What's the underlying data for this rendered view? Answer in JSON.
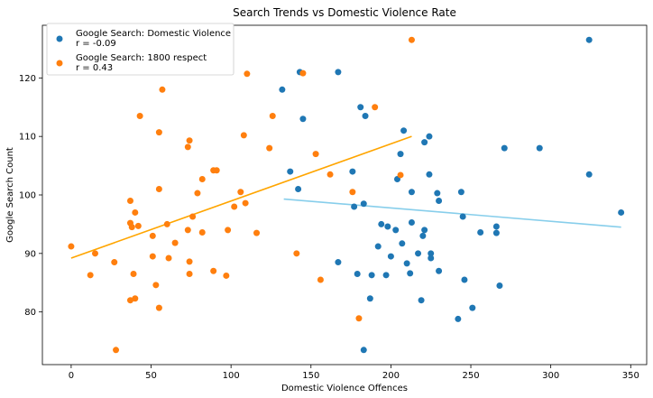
{
  "chart_data": {
    "type": "scatter",
    "title": "Search Trends vs Domestic Violence Rate",
    "xlabel": "Domestic Violence Offences",
    "ylabel": "Google Search Count",
    "xlim": [
      -18,
      360
    ],
    "ylim": [
      71,
      129
    ],
    "xticks": [
      0,
      50,
      100,
      150,
      200,
      250,
      300,
      350
    ],
    "yticks": [
      80,
      90,
      100,
      110,
      120
    ],
    "grid": false,
    "legend_position": "top-left",
    "series": [
      {
        "name": "Google Search: Domestic Violence",
        "legend_label_line1": "Google Search: Domestic Violence",
        "legend_label_line2": "r = -0.09",
        "color": "#1f77b4",
        "trend_color": "#87ceeb",
        "trend": [
          [
            133,
            99.3
          ],
          [
            344,
            94.5
          ]
        ],
        "points": [
          [
            143,
            121
          ],
          [
            167,
            121
          ],
          [
            132,
            118
          ],
          [
            145,
            113
          ],
          [
            181,
            115
          ],
          [
            184,
            113.5
          ],
          [
            208,
            111
          ],
          [
            224,
            110
          ],
          [
            221,
            109
          ],
          [
            137,
            104
          ],
          [
            176,
            104
          ],
          [
            293,
            108
          ],
          [
            271,
            108
          ],
          [
            324,
            126.5
          ],
          [
            324,
            103.5
          ],
          [
            142,
            101
          ],
          [
            177,
            98
          ],
          [
            183,
            98.5
          ],
          [
            204,
            102.7
          ],
          [
            206,
            107
          ],
          [
            213,
            100.5
          ],
          [
            224,
            103.5
          ],
          [
            229,
            100.3
          ],
          [
            230,
            99
          ],
          [
            244,
            100.5
          ],
          [
            245,
            96.3
          ],
          [
            344,
            97
          ],
          [
            194,
            95
          ],
          [
            198,
            94.6
          ],
          [
            203,
            94
          ],
          [
            213,
            95.3
          ],
          [
            221,
            94
          ],
          [
            266,
            94.6
          ],
          [
            266,
            93.5
          ],
          [
            256,
            93.6
          ],
          [
            220,
            93
          ],
          [
            207,
            91.7
          ],
          [
            192,
            91.2
          ],
          [
            200,
            89.5
          ],
          [
            217,
            90
          ],
          [
            225,
            90
          ],
          [
            225,
            89.2
          ],
          [
            210,
            88.3
          ],
          [
            167,
            88.5
          ],
          [
            179,
            86.5
          ],
          [
            188,
            86.3
          ],
          [
            197,
            86.3
          ],
          [
            212,
            86.6
          ],
          [
            230,
            87
          ],
          [
            246,
            85.5
          ],
          [
            268,
            84.5
          ],
          [
            187,
            82.3
          ],
          [
            219,
            82
          ],
          [
            183,
            73.5
          ],
          [
            242,
            78.8
          ],
          [
            251,
            80.7
          ]
        ]
      },
      {
        "name": "Google Search: 1800 respect",
        "legend_label_line1": "Google Search: 1800 respect",
        "legend_label_line2": "r = 0.43",
        "color": "#ff7f0e",
        "trend_color": "#ffa500",
        "trend": [
          [
            0,
            89.2
          ],
          [
            213,
            110
          ]
        ],
        "points": [
          [
            0,
            91.2
          ],
          [
            12,
            86.3
          ],
          [
            15,
            90
          ],
          [
            27,
            88.5
          ],
          [
            28,
            73.5
          ],
          [
            37,
            95.2
          ],
          [
            37,
            82
          ],
          [
            38,
            94.5
          ],
          [
            39,
            86.5
          ],
          [
            40,
            82.3
          ],
          [
            40,
            97
          ],
          [
            42,
            94.7
          ],
          [
            43,
            113.5
          ],
          [
            51,
            93
          ],
          [
            51,
            89.5
          ],
          [
            53,
            84.6
          ],
          [
            55,
            80.7
          ],
          [
            55,
            101
          ],
          [
            55,
            110.7
          ],
          [
            57,
            118
          ],
          [
            60,
            95
          ],
          [
            61,
            89.2
          ],
          [
            65,
            91.8
          ],
          [
            73,
            94
          ],
          [
            73,
            108.2
          ],
          [
            74,
            109.3
          ],
          [
            74,
            88.6
          ],
          [
            74,
            86.5
          ],
          [
            76,
            96.3
          ],
          [
            79,
            100.3
          ],
          [
            82,
            102.7
          ],
          [
            82,
            93.6
          ],
          [
            89,
            87
          ],
          [
            89,
            104.2
          ],
          [
            91,
            104.2
          ],
          [
            97,
            86.2
          ],
          [
            98,
            94
          ],
          [
            102,
            98
          ],
          [
            106,
            100.5
          ],
          [
            108,
            110.2
          ],
          [
            109,
            98.6
          ],
          [
            110,
            120.7
          ],
          [
            116,
            93.5
          ],
          [
            124,
            108
          ],
          [
            126,
            113.5
          ],
          [
            141,
            90
          ],
          [
            145,
            120.8
          ],
          [
            153,
            107
          ],
          [
            156,
            85.5
          ],
          [
            162,
            103.5
          ],
          [
            176,
            100.5
          ],
          [
            180,
            78.9
          ],
          [
            190,
            115
          ],
          [
            206,
            103.4
          ],
          [
            213,
            126.5
          ],
          [
            37,
            99
          ]
        ]
      }
    ]
  }
}
